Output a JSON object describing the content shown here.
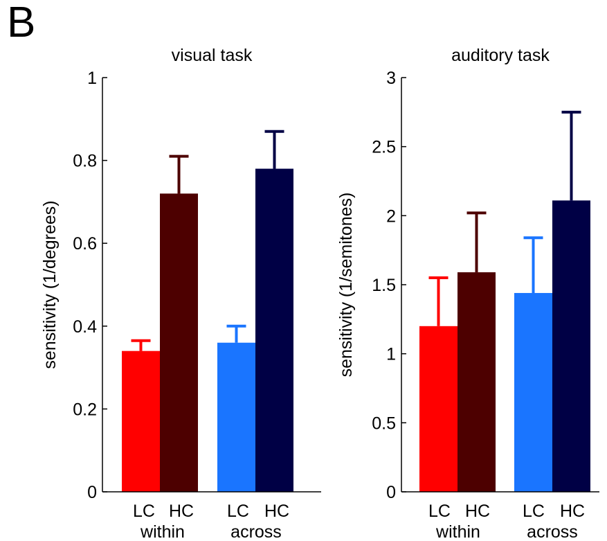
{
  "panel_label": "B",
  "chart_data": [
    {
      "type": "bar",
      "title": "visual task",
      "xlabel": "",
      "ylabel": "sensitivity (1/degrees)",
      "ylim": [
        0,
        1
      ],
      "yticks": [
        0,
        0.2,
        0.4,
        0.6,
        0.8,
        1
      ],
      "ytick_labels": [
        "0",
        "0.2",
        "0.4",
        "0.6",
        "0.8",
        "1"
      ],
      "grid": false,
      "groups": [
        "within",
        "across"
      ],
      "categories": [
        "LC",
        "HC",
        "LC",
        "HC"
      ],
      "values": [
        0.34,
        0.72,
        0.36,
        0.78
      ],
      "error_upper": [
        0.365,
        0.81,
        0.4,
        0.87
      ],
      "colors": [
        "#ff0000",
        "#4d0000",
        "#1a75ff",
        "#000045"
      ]
    },
    {
      "type": "bar",
      "title": "auditory task",
      "xlabel": "",
      "ylabel": "sensitivity (1/semitones)",
      "ylim": [
        0,
        3
      ],
      "yticks": [
        0,
        0.5,
        1,
        1.5,
        2,
        2.5,
        3
      ],
      "ytick_labels": [
        "0",
        "0.5",
        "1",
        "1.5",
        "2",
        "2.5",
        "3"
      ],
      "grid": false,
      "groups": [
        "within",
        "across"
      ],
      "categories": [
        "LC",
        "HC",
        "LC",
        "HC"
      ],
      "values": [
        1.2,
        1.59,
        1.44,
        2.11
      ],
      "error_upper": [
        1.55,
        2.02,
        1.84,
        2.75
      ],
      "colors": [
        "#ff0000",
        "#4d0000",
        "#1a75ff",
        "#000045"
      ]
    }
  ]
}
